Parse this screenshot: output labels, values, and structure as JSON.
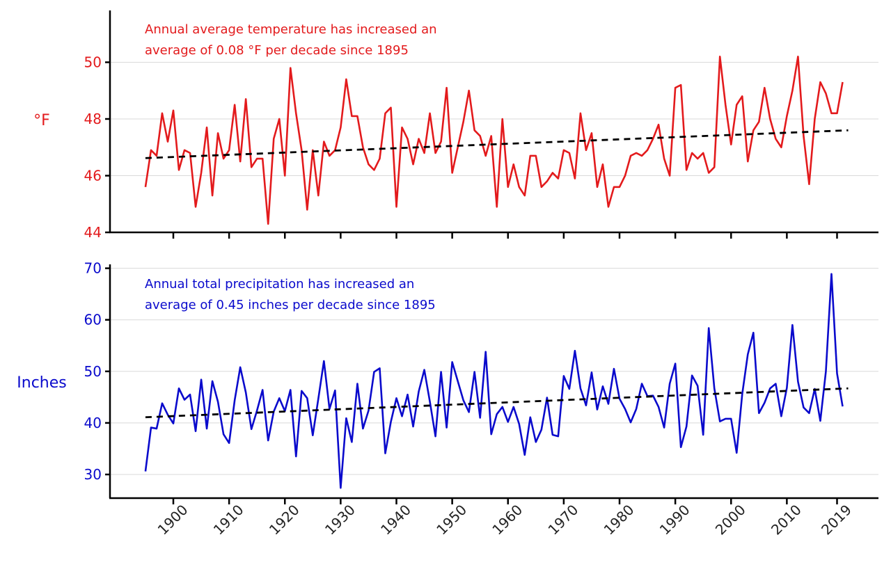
{
  "chart_data": [
    {
      "type": "line",
      "panel": "top",
      "ylabel": "°F",
      "ylim": [
        44,
        51.8
      ],
      "yticks": [
        44,
        46,
        48,
        50
      ],
      "color": "#e31a1c",
      "annotation": [
        "Annual average temperature has increased an",
        "average of 0.08 °F per decade since 1895"
      ],
      "series": [
        {
          "name": "Annual average temperature",
          "start_year": 1895,
          "values": [
            45.6,
            46.9,
            46.7,
            48.2,
            47.2,
            48.3,
            46.2,
            46.9,
            46.8,
            44.9,
            46.1,
            47.7,
            45.3,
            47.5,
            46.6,
            46.9,
            48.5,
            46.5,
            48.7,
            46.3,
            46.6,
            46.6,
            44.3,
            47.3,
            48.0,
            46.0,
            49.8,
            48.2,
            46.9,
            44.8,
            46.9,
            45.3,
            47.2,
            46.7,
            46.9,
            47.7,
            49.4,
            48.1,
            48.1,
            47.0,
            46.4,
            46.2,
            46.6,
            48.2,
            48.4,
            44.9,
            47.7,
            47.3,
            46.4,
            47.3,
            46.8,
            48.2,
            46.8,
            47.2,
            49.1,
            46.1,
            47.0,
            47.9,
            49.0,
            47.6,
            47.4,
            46.7,
            47.4,
            44.9,
            48.0,
            45.6,
            46.4,
            45.6,
            45.3,
            46.7,
            46.7,
            45.6,
            45.8,
            46.1,
            45.9,
            46.9,
            46.8,
            45.9,
            48.2,
            46.9,
            47.5,
            45.6,
            46.4,
            44.9,
            45.6,
            45.6,
            46.0,
            46.7,
            46.8,
            46.7,
            46.9,
            47.3,
            47.8,
            46.6,
            46.0,
            49.1,
            49.2,
            46.2,
            46.8,
            46.6,
            46.8,
            46.1,
            46.3,
            50.2,
            48.5,
            47.1,
            48.5,
            48.8,
            46.5,
            47.6,
            47.9,
            49.1,
            48.0,
            47.3,
            47.0,
            48.1,
            49.0,
            50.2,
            47.4,
            45.7,
            48.0,
            49.3,
            48.9,
            48.2,
            48.2,
            49.3
          ]
        },
        {
          "name": "Trend",
          "style": "dashed",
          "x": [
            1895,
            2021
          ],
          "values": [
            46.62,
            47.6
          ]
        }
      ]
    },
    {
      "type": "line",
      "panel": "bottom",
      "ylabel": "Inches",
      "ylim": [
        25,
        71
      ],
      "yticks": [
        30,
        40,
        50,
        60,
        70
      ],
      "color": "#0a0acc",
      "annotation": [
        "Annual total precipitation has increased an",
        "average of 0.45 inches per decade since 1895"
      ],
      "series": [
        {
          "name": "Annual total precipitation",
          "start_year": 1895,
          "values": [
            30.6,
            39.1,
            38.9,
            43.8,
            41.6,
            39.9,
            46.7,
            44.5,
            45.5,
            38.4,
            48.4,
            38.9,
            48.1,
            44.1,
            37.8,
            36.1,
            44.4,
            50.8,
            45.9,
            38.8,
            42.4,
            46.4,
            36.6,
            42.2,
            44.8,
            42.3,
            46.4,
            33.5,
            46.2,
            44.8,
            37.6,
            44.7,
            52.0,
            42.7,
            46.3,
            27.4,
            40.9,
            36.3,
            47.6,
            38.9,
            42.4,
            49.9,
            50.6,
            34.1,
            40.2,
            44.8,
            41.3,
            45.5,
            39.3,
            46.1,
            50.3,
            44.1,
            37.4,
            49.9,
            39.1,
            51.8,
            48.1,
            44.4,
            42.1,
            49.9,
            41.0,
            53.8,
            37.8,
            41.7,
            43.1,
            40.2,
            43.1,
            39.8,
            33.8,
            41.1,
            36.3,
            38.7,
            44.9,
            37.7,
            37.4,
            49.1,
            46.6,
            54.0,
            46.7,
            43.4,
            49.8,
            42.6,
            47.1,
            43.7,
            50.5,
            44.7,
            42.7,
            40.1,
            42.7,
            47.6,
            45.2,
            45.3,
            43.1,
            39.1,
            47.6,
            51.5,
            35.3,
            39.3,
            49.2,
            47.2,
            37.7,
            58.4,
            46.7,
            40.3,
            40.8,
            40.8,
            34.2,
            45.6,
            53.3,
            57.5,
            41.9,
            43.9,
            46.7,
            47.6,
            41.3,
            46.8,
            59.0,
            48.0,
            43.0,
            41.9,
            46.6,
            40.4,
            50.0,
            68.9,
            49.6,
            43.2
          ]
        },
        {
          "name": "Trend",
          "style": "dashed",
          "x": [
            1895,
            2021
          ],
          "values": [
            41.1,
            46.7
          ]
        }
      ]
    }
  ],
  "x_axis": {
    "ticks": [
      1900,
      1910,
      1920,
      1930,
      1940,
      1950,
      1960,
      1970,
      1980,
      1990,
      2000,
      2010,
      2019
    ]
  }
}
